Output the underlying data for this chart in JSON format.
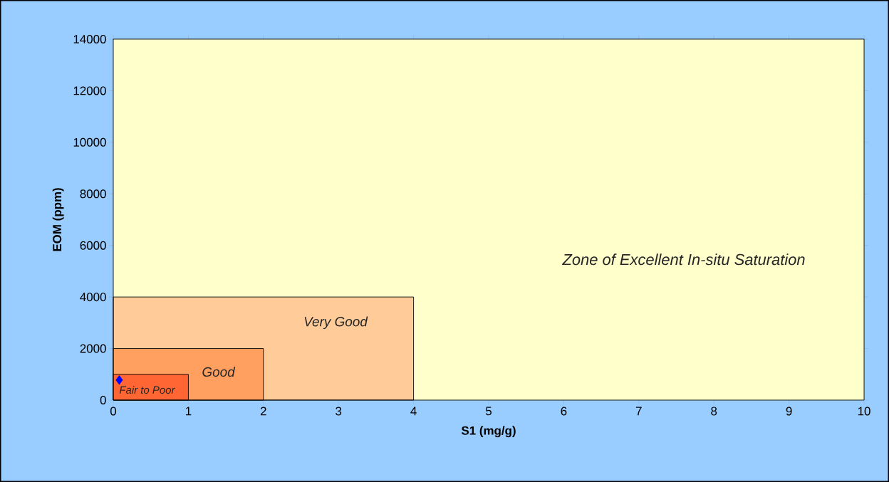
{
  "chart_data": {
    "type": "scatter",
    "xlabel": "S1 (mg/g)",
    "ylabel": "EOM (ppm)",
    "xlim": [
      0,
      10
    ],
    "ylim": [
      0,
      14000
    ],
    "xticks": [
      0,
      1,
      2,
      3,
      4,
      5,
      6,
      7,
      8,
      9,
      10
    ],
    "yticks": [
      0,
      2000,
      4000,
      6000,
      8000,
      10000,
      12000,
      14000
    ],
    "grid": false,
    "legend": false,
    "annotations": [
      "Zone of Excellent In-situ Saturation"
    ],
    "series": [
      {
        "name": "Very Good",
        "type": "area",
        "color": "#ffcc99",
        "x": [
          0,
          4
        ],
        "values": [
          4000,
          4000
        ]
      },
      {
        "name": "Good",
        "type": "area",
        "color": "#ffa061",
        "x": [
          0,
          2
        ],
        "values": [
          2000,
          2000
        ]
      },
      {
        "name": "Fair to Poor",
        "type": "area",
        "color": "#ff6633",
        "x": [
          0,
          1
        ],
        "values": [
          1000,
          1000
        ]
      },
      {
        "color": "#0000ff",
        "x": [
          0.08
        ],
        "values": [
          780
        ],
        "marker": "diamond"
      }
    ]
  }
}
